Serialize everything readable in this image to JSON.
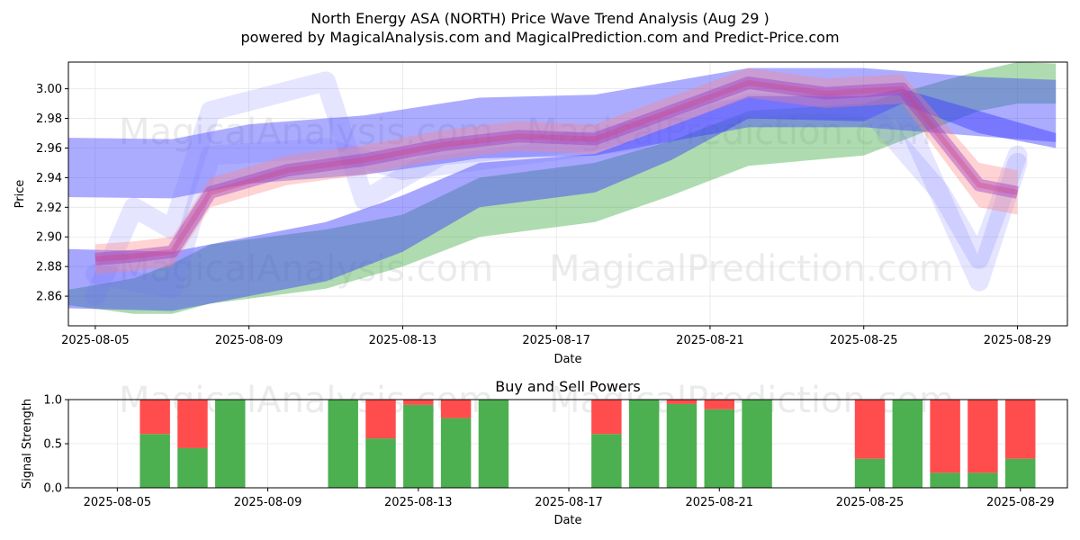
{
  "title_line1": "North Energy ASA (NORTH) Price Wave Trend Analysis (Aug 29 )",
  "title_line2": "powered by MagicalAnalysis.com and MagicalPrediction.com and Predict-Price.com",
  "watermarks": [
    "MagicalAnalysis.com",
    "MagicalPrediction.com"
  ],
  "chart_data": [
    {
      "type": "area",
      "title": "",
      "xlabel": "Date",
      "ylabel": "Price",
      "ylim": [
        2.84,
        3.018
      ],
      "xlim": [
        "2025-08-04",
        "2025-08-30"
      ],
      "x_ticks": [
        "2025-08-05",
        "2025-08-09",
        "2025-08-13",
        "2025-08-17",
        "2025-08-21",
        "2025-08-25",
        "2025-08-29"
      ],
      "y_ticks": [
        2.86,
        2.88,
        2.9,
        2.92,
        2.94,
        2.96,
        2.98,
        3.0
      ],
      "grid": true,
      "colors": {
        "green_band": "#4caf50",
        "blue_band": "#3a3aff",
        "red_band": "#ff8080",
        "purple_line": "#a040c0"
      },
      "series": [
        {
          "band": "green",
          "x": [
            "2025-08-04",
            "2025-08-06",
            "2025-08-07",
            "2025-08-08",
            "2025-08-11",
            "2025-08-13",
            "2025-08-15",
            "2025-08-18",
            "2025-08-20",
            "2025-08-22",
            "2025-08-25",
            "2025-08-27",
            "2025-08-28",
            "2025-08-29",
            "2025-08-30"
          ],
          "upper": [
            2.863,
            2.872,
            2.882,
            2.895,
            2.905,
            2.915,
            2.94,
            2.95,
            2.965,
            2.985,
            2.99,
            3.005,
            3.012,
            3.018,
            3.017
          ],
          "lower": [
            2.855,
            2.848,
            2.848,
            2.855,
            2.865,
            2.88,
            2.9,
            2.91,
            2.928,
            2.948,
            2.955,
            2.975,
            2.985,
            2.99,
            2.99
          ]
        },
        {
          "band": "blue-upper",
          "x": [
            "2025-08-04",
            "2025-08-07",
            "2025-08-09",
            "2025-08-12",
            "2025-08-15",
            "2025-08-18",
            "2025-08-22",
            "2025-08-25",
            "2025-08-28",
            "2025-08-30"
          ],
          "upper": [
            2.967,
            2.966,
            2.976,
            2.982,
            2.994,
            2.996,
            3.014,
            3.014,
            3.008,
            3.006
          ],
          "lower": [
            2.927,
            2.926,
            2.936,
            2.942,
            2.953,
            2.955,
            2.974,
            2.974,
            2.968,
            2.964
          ]
        },
        {
          "band": "blue-lower",
          "x": [
            "2025-08-04",
            "2025-08-07",
            "2025-08-11",
            "2025-08-13",
            "2025-08-15",
            "2025-08-18",
            "2025-08-20",
            "2025-08-22",
            "2025-08-25",
            "2025-08-26",
            "2025-08-28",
            "2025-08-30"
          ],
          "upper": [
            2.892,
            2.89,
            2.91,
            2.928,
            2.95,
            2.956,
            2.975,
            2.995,
            2.995,
            3.0,
            2.985,
            2.97
          ],
          "lower": [
            2.852,
            2.85,
            2.87,
            2.89,
            2.92,
            2.93,
            2.952,
            2.98,
            2.978,
            2.99,
            2.97,
            2.96
          ]
        },
        {
          "band": "red-purple",
          "x": [
            "2025-08-05",
            "2025-08-06",
            "2025-08-07",
            "2025-08-08",
            "2025-08-10",
            "2025-08-12",
            "2025-08-14",
            "2025-08-16",
            "2025-08-18",
            "2025-08-20",
            "2025-08-22",
            "2025-08-24",
            "2025-08-26",
            "2025-08-28",
            "2025-08-29"
          ],
          "center": [
            2.885,
            2.887,
            2.89,
            2.93,
            2.945,
            2.952,
            2.962,
            2.968,
            2.966,
            2.985,
            3.004,
            2.997,
            3.0,
            2.935,
            2.93
          ],
          "width": [
            0.02,
            0.02,
            0.02,
            0.02,
            0.02,
            0.02,
            0.02,
            0.02,
            0.02,
            0.02,
            0.02,
            0.02,
            0.02,
            0.03,
            0.03
          ]
        }
      ]
    },
    {
      "type": "bar",
      "title": "Buy and Sell Powers",
      "xlabel": "Date",
      "ylabel": "Signal Strength",
      "ylim": [
        0,
        1.0
      ],
      "y_ticks": [
        0.0,
        0.5,
        1.0
      ],
      "x_ticks": [
        "2025-08-05",
        "2025-08-09",
        "2025-08-13",
        "2025-08-17",
        "2025-08-21",
        "2025-08-25",
        "2025-08-29"
      ],
      "grid": true,
      "colors": {
        "buy": "#4caf50",
        "sell": "#ff4d4d"
      },
      "dates": [
        "2025-08-06",
        "2025-08-07",
        "2025-08-08",
        "2025-08-11",
        "2025-08-12",
        "2025-08-13",
        "2025-08-14",
        "2025-08-15",
        "2025-08-18",
        "2025-08-19",
        "2025-08-20",
        "2025-08-21",
        "2025-08-22",
        "2025-08-25",
        "2025-08-26",
        "2025-08-27",
        "2025-08-28",
        "2025-08-29"
      ],
      "series": [
        {
          "name": "Buy",
          "values": [
            0.61,
            0.45,
            1.0,
            1.0,
            0.56,
            0.94,
            0.79,
            1.0,
            0.61,
            1.0,
            0.95,
            0.89,
            1.0,
            0.33,
            1.0,
            0.17,
            0.17,
            0.33
          ]
        },
        {
          "name": "Sell",
          "values": [
            0.39,
            0.55,
            0.0,
            0.0,
            0.44,
            0.06,
            0.21,
            0.0,
            0.39,
            0.0,
            0.05,
            0.11,
            0.0,
            0.67,
            0.0,
            0.83,
            0.83,
            0.67
          ]
        }
      ]
    }
  ]
}
